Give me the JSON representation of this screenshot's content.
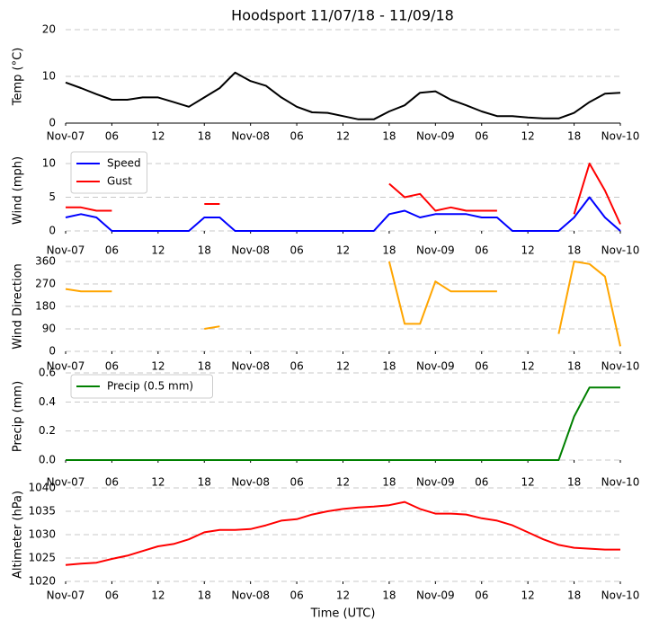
{
  "chart_data": [
    {
      "type": "line",
      "title": "Hoodsport 11/07/18 - 11/09/18",
      "ylabel": "Temp (°C)",
      "x": [
        0,
        2,
        4,
        6,
        8,
        10,
        12,
        14,
        16,
        18,
        20,
        22,
        24,
        26,
        28,
        30,
        32,
        34,
        36,
        38,
        40,
        42,
        44,
        46,
        48,
        50,
        52,
        54,
        56,
        58,
        60,
        62,
        64,
        66,
        68,
        70,
        72
      ],
      "values": [
        8.7,
        7.5,
        6.2,
        5,
        5,
        5.5,
        5.5,
        4.5,
        3.5,
        5.5,
        7.5,
        10.8,
        9,
        8,
        5.5,
        3.5,
        2.3,
        2.2,
        1.5,
        0.8,
        0.8,
        2.5,
        3.8,
        6.5,
        6.8,
        5,
        3.8,
        2.5,
        1.5,
        1.5,
        1.2,
        1,
        1,
        2.2,
        4.5,
        6.3,
        6.5
      ],
      "color": "#000000",
      "xlim": [
        0,
        72
      ],
      "ylim": [
        0,
        20
      ],
      "yticks": [
        0,
        10,
        20
      ],
      "grid": true,
      "xticks": [
        {
          "value": 0,
          "label": "Nov-07"
        },
        {
          "value": 6,
          "label": "06"
        },
        {
          "value": 12,
          "label": "12"
        },
        {
          "value": 18,
          "label": "18"
        },
        {
          "value": 24,
          "label": "Nov-08"
        },
        {
          "value": 30,
          "label": "06"
        },
        {
          "value": 36,
          "label": "12"
        },
        {
          "value": 42,
          "label": "18"
        },
        {
          "value": 48,
          "label": "Nov-09"
        },
        {
          "value": 54,
          "label": "06"
        },
        {
          "value": 60,
          "label": "12"
        },
        {
          "value": 66,
          "label": "18"
        },
        {
          "value": 72,
          "label": "Nov-10"
        }
      ]
    },
    {
      "type": "line",
      "ylabel": "Wind (mph)",
      "x": [
        0,
        2,
        4,
        6,
        8,
        10,
        12,
        14,
        16,
        18,
        20,
        22,
        24,
        26,
        28,
        30,
        32,
        34,
        36,
        38,
        40,
        42,
        44,
        46,
        48,
        50,
        52,
        54,
        56,
        58,
        60,
        62,
        64,
        66,
        68,
        70,
        72
      ],
      "series": [
        {
          "name": "Speed",
          "color": "#0000ff",
          "values": [
            2,
            2.5,
            2,
            0,
            0,
            0,
            0,
            0,
            0,
            2,
            2,
            0,
            0,
            0,
            0,
            0,
            0,
            0,
            0,
            0,
            0,
            2.5,
            3,
            2,
            2.5,
            2.5,
            2.5,
            2,
            2,
            0,
            0,
            0,
            0,
            2,
            5,
            2,
            0
          ]
        },
        {
          "name": "Gust",
          "color": "#ff0000",
          "values": [
            3.5,
            3.5,
            3,
            3,
            null,
            null,
            null,
            null,
            null,
            4,
            4,
            null,
            null,
            null,
            null,
            null,
            null,
            null,
            null,
            null,
            null,
            7,
            5,
            5.5,
            3,
            3.5,
            3,
            3,
            3,
            null,
            null,
            null,
            null,
            2.5,
            10,
            6,
            1
          ]
        }
      ],
      "legend": "upper left",
      "xlim": [
        0,
        72
      ],
      "ylim": [
        0,
        12
      ],
      "yticks": [
        0,
        5,
        10
      ],
      "grid": true,
      "xticks": [
        {
          "value": 0,
          "label": "Nov-07"
        },
        {
          "value": 6,
          "label": "06"
        },
        {
          "value": 12,
          "label": "12"
        },
        {
          "value": 18,
          "label": "18"
        },
        {
          "value": 24,
          "label": "Nov-08"
        },
        {
          "value": 30,
          "label": "06"
        },
        {
          "value": 36,
          "label": "12"
        },
        {
          "value": 42,
          "label": "18"
        },
        {
          "value": 48,
          "label": "Nov-09"
        },
        {
          "value": 54,
          "label": "06"
        },
        {
          "value": 60,
          "label": "12"
        },
        {
          "value": 66,
          "label": "18"
        },
        {
          "value": 72,
          "label": "Nov-10"
        }
      ]
    },
    {
      "type": "line",
      "ylabel": "Wind Direction",
      "x": [
        0,
        2,
        4,
        6,
        8,
        10,
        12,
        14,
        16,
        18,
        20,
        22,
        24,
        26,
        28,
        30,
        32,
        34,
        36,
        38,
        40,
        42,
        44,
        46,
        48,
        50,
        52,
        54,
        56,
        58,
        60,
        62,
        64,
        66,
        68,
        70,
        72
      ],
      "values": [
        250,
        240,
        240,
        240,
        null,
        null,
        null,
        null,
        null,
        90,
        100,
        null,
        null,
        null,
        null,
        null,
        null,
        null,
        null,
        null,
        null,
        360,
        110,
        110,
        280,
        240,
        240,
        240,
        240,
        null,
        null,
        null,
        70,
        360,
        350,
        300,
        20
      ],
      "color": "#ffa500",
      "xlim": [
        0,
        72
      ],
      "ylim": [
        0,
        360
      ],
      "yticks": [
        0,
        90,
        180,
        270,
        360
      ],
      "grid": true,
      "xticks": [
        {
          "value": 0,
          "label": "Nov-07"
        },
        {
          "value": 6,
          "label": "06"
        },
        {
          "value": 12,
          "label": "12"
        },
        {
          "value": 18,
          "label": "18"
        },
        {
          "value": 24,
          "label": "Nov-08"
        },
        {
          "value": 30,
          "label": "06"
        },
        {
          "value": 36,
          "label": "12"
        },
        {
          "value": 42,
          "label": "18"
        },
        {
          "value": 48,
          "label": "Nov-09"
        },
        {
          "value": 54,
          "label": "06"
        },
        {
          "value": 60,
          "label": "12"
        },
        {
          "value": 66,
          "label": "18"
        },
        {
          "value": 72,
          "label": "Nov-10"
        }
      ]
    },
    {
      "type": "line",
      "ylabel": "Precip (mm)",
      "x": [
        0,
        2,
        4,
        6,
        8,
        10,
        12,
        14,
        16,
        18,
        20,
        22,
        24,
        26,
        28,
        30,
        32,
        34,
        36,
        38,
        40,
        42,
        44,
        46,
        48,
        50,
        52,
        54,
        56,
        58,
        60,
        62,
        64,
        66,
        68,
        70,
        72
      ],
      "series": [
        {
          "name": "Precip (0.5 mm)",
          "color": "#008000",
          "values": [
            0,
            0,
            0,
            0,
            0,
            0,
            0,
            0,
            0,
            0,
            0,
            0,
            0,
            0,
            0,
            0,
            0,
            0,
            0,
            0,
            0,
            0,
            0,
            0,
            0,
            0,
            0,
            0,
            0,
            0,
            0,
            0,
            0,
            0.3,
            0.5,
            0.5,
            0.5
          ]
        }
      ],
      "legend": "upper left",
      "xlim": [
        0,
        72
      ],
      "ylim": [
        0,
        0.6
      ],
      "yticks": [
        {
          "value": 0,
          "label": "0.0"
        },
        0.2,
        0.4,
        0.6
      ],
      "grid": true,
      "xticks": [
        {
          "value": 0,
          "label": "Nov-07"
        },
        {
          "value": 6,
          "label": "06"
        },
        {
          "value": 12,
          "label": "12"
        },
        {
          "value": 18,
          "label": "18"
        },
        {
          "value": 24,
          "label": "Nov-08"
        },
        {
          "value": 30,
          "label": "06"
        },
        {
          "value": 36,
          "label": "12"
        },
        {
          "value": 42,
          "label": "18"
        },
        {
          "value": 48,
          "label": "Nov-09"
        },
        {
          "value": 54,
          "label": "06"
        },
        {
          "value": 60,
          "label": "12"
        },
        {
          "value": 66,
          "label": "18"
        },
        {
          "value": 72,
          "label": "Nov-10"
        }
      ]
    },
    {
      "type": "line",
      "ylabel": "Altimeter (hPa)",
      "xlabel": "Time (UTC)",
      "x": [
        0,
        2,
        4,
        6,
        8,
        10,
        12,
        14,
        16,
        18,
        20,
        22,
        24,
        26,
        28,
        30,
        32,
        34,
        36,
        38,
        40,
        42,
        44,
        46,
        48,
        50,
        52,
        54,
        56,
        58,
        60,
        62,
        64,
        66,
        68,
        70,
        72
      ],
      "values": [
        1023.5,
        1023.8,
        1024,
        1024.8,
        1025.5,
        1026.5,
        1027.5,
        1028,
        1029,
        1030.5,
        1031,
        1031,
        1031.2,
        1032,
        1033,
        1033.3,
        1034.3,
        1035,
        1035.5,
        1035.8,
        1036,
        1036.3,
        1037,
        1035.5,
        1034.5,
        1034.5,
        1034.3,
        1033.5,
        1033,
        1032,
        1030.5,
        1029,
        1027.8,
        1027.2,
        1027,
        1026.8,
        1026.8
      ],
      "color": "#ff0000",
      "xlim": [
        0,
        72
      ],
      "ylim": [
        1020,
        1040
      ],
      "yticks": [
        1020,
        1025,
        1030,
        1035,
        1040
      ],
      "grid": true,
      "xticks": [
        {
          "value": 0,
          "label": "Nov-07"
        },
        {
          "value": 6,
          "label": "06"
        },
        {
          "value": 12,
          "label": "12"
        },
        {
          "value": 18,
          "label": "18"
        },
        {
          "value": 24,
          "label": "Nov-08"
        },
        {
          "value": 30,
          "label": "06"
        },
        {
          "value": 36,
          "label": "12"
        },
        {
          "value": 42,
          "label": "18"
        },
        {
          "value": 48,
          "label": "Nov-09"
        },
        {
          "value": 54,
          "label": "06"
        },
        {
          "value": 60,
          "label": "12"
        },
        {
          "value": 66,
          "label": "18"
        },
        {
          "value": 72,
          "label": "Nov-10"
        }
      ]
    }
  ]
}
